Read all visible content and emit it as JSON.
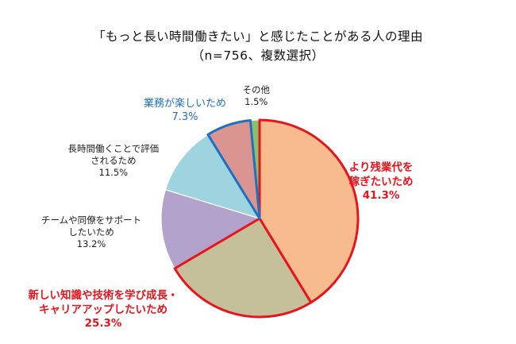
{
  "colors": {
    "highlight_red": "#E8141C",
    "highlight_blue": "#1F6FC3",
    "normal_text": "#222222"
  },
  "chart_data": {
    "type": "pie",
    "title": "「もっと長い時間働きたい」と感じたことがある人の理由",
    "subtitle": "（n=756、複数選択）",
    "start": "12 o'clock",
    "direction": "clockwise",
    "slices": [
      {
        "lines": [
          "より残業代を",
          "稼ぎたいため"
        ],
        "pct_text": "41.3%",
        "value": 41.3,
        "color": "#F8BB8E",
        "border": "#E8141C",
        "label_style": "red"
      },
      {
        "lines": [
          "新しい知識や技術を学び成長・",
          "キャリアアップしたいため"
        ],
        "pct_text": "25.3%",
        "value": 25.3,
        "color": "#C6C09A",
        "border": "#E8141C",
        "label_style": "red"
      },
      {
        "lines": [
          "チームや同僚をサポート",
          "したいため"
        ],
        "pct_text": "13.2%",
        "value": 13.2,
        "color": "#B3A2CC",
        "border": "#ffffff",
        "label_style": "normal"
      },
      {
        "lines": [
          "長時間働くことで評価",
          "されるため"
        ],
        "pct_text": "11.5%",
        "value": 11.5,
        "color": "#9DD4E0",
        "border": "#ffffff",
        "label_style": "normal"
      },
      {
        "lines": [
          "業務が楽しいため"
        ],
        "pct_text": "7.3%",
        "value": 7.3,
        "color": "#DA9590",
        "border": "#1F6FC3",
        "label_style": "blue"
      },
      {
        "lines": [
          "その他"
        ],
        "pct_text": "1.5%",
        "value": 1.5,
        "color": "#8DBF6A",
        "border": "#ffffff",
        "label_style": "normal"
      }
    ]
  }
}
